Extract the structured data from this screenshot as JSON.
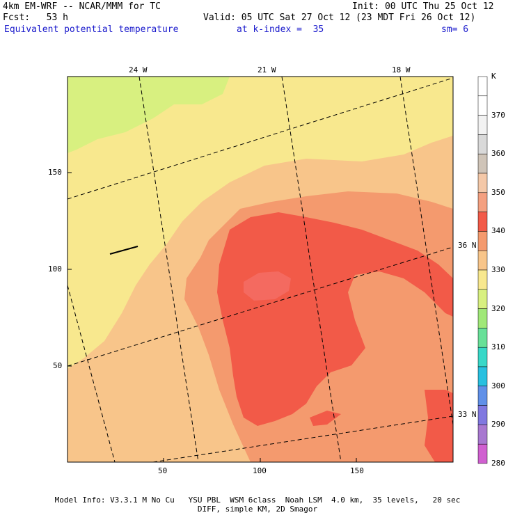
{
  "header": {
    "model_line": "4km EM-WRF -- NCAR/MMM for TC",
    "init_line": "Init: 00 UTC Thu 25 Oct 12",
    "fcst_line": "Fcst:   53 h",
    "valid_line": "Valid: 05 UTC Sat 27 Oct 12 (23 MDT Fri 26 Oct 12)",
    "field_name": "Equivalent potential temperature",
    "level_line": "at k-index =  35",
    "smoothing": "sm= 6"
  },
  "map": {
    "top_ticks": [
      "24 W",
      "21 W",
      "18 W"
    ],
    "bottom_ticks": [
      "50",
      "100",
      "150"
    ],
    "left_ticks": [
      "150",
      "100",
      "50"
    ],
    "right_ticks": [
      "36 N",
      "33 N"
    ]
  },
  "colorbar": {
    "unit": "K",
    "levels": [
      "370",
      "360",
      "350",
      "340",
      "330",
      "320",
      "310",
      "300",
      "290",
      "280"
    ],
    "colors": [
      "#ffffff",
      "#ffffff",
      "#f2f2f2",
      "#d9d9d9",
      "#cfc4b8",
      "#f4c8a8",
      "#f4a080",
      "#f25a48",
      "#f49a6e",
      "#f8c58a",
      "#f8e88e",
      "#d8f080",
      "#a0e878",
      "#68e098",
      "#38d8c8",
      "#28c0e0",
      "#6090e8",
      "#8078e0",
      "#a878d0",
      "#d060d0"
    ]
  },
  "footer": {
    "line1": "Model Info: V3.3.1 M No Cu   YSU PBL  WSM 6class  Noah LSM  4.0 km,  35 levels,   20 sec",
    "line2": "DIFF, simple KM, 2D Smagor"
  }
}
